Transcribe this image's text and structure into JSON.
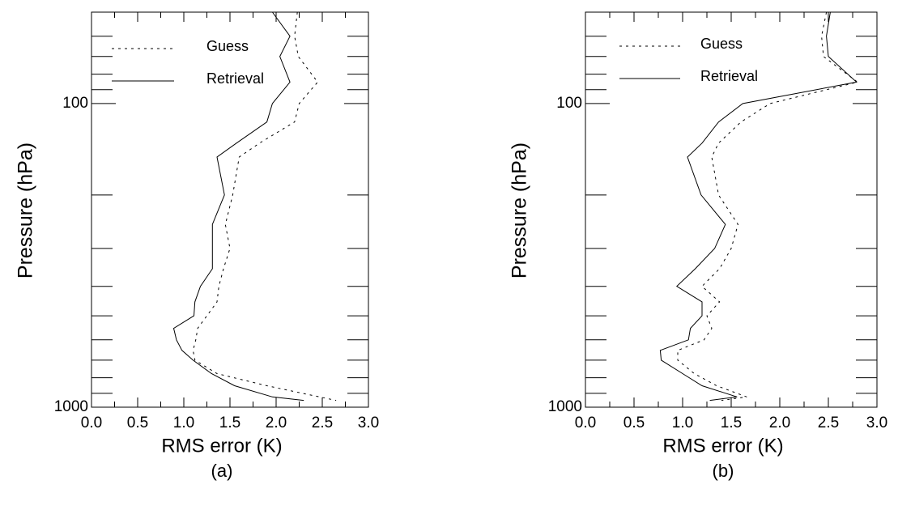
{
  "chart_data": [
    {
      "type": "line",
      "caption": "(a)",
      "xlabel": "RMS error (K)",
      "ylabel": "Pressure (hPa)",
      "pressure": [
        50,
        60,
        70,
        85,
        100,
        115,
        135,
        150,
        200,
        250,
        300,
        350,
        400,
        450,
        500,
        550,
        600,
        650,
        700,
        775,
        850,
        925,
        950
      ],
      "series": [
        {
          "name": "Guess",
          "color": "#000000",
          "dash": "dotted",
          "values": [
            2.23,
            2.2,
            2.24,
            2.45,
            2.25,
            2.2,
            1.82,
            1.6,
            1.53,
            1.45,
            1.5,
            1.43,
            1.38,
            1.36,
            1.25,
            1.15,
            1.13,
            1.1,
            1.12,
            1.36,
            1.9,
            2.47,
            2.65
          ]
        },
        {
          "name": "Retrieval",
          "color": "#000000",
          "dash": "solid",
          "values": [
            1.96,
            2.15,
            2.04,
            2.15,
            1.96,
            1.9,
            1.57,
            1.36,
            1.44,
            1.31,
            1.31,
            1.31,
            1.18,
            1.12,
            1.11,
            0.89,
            0.92,
            0.98,
            1.1,
            1.3,
            1.55,
            1.96,
            2.3
          ]
        }
      ],
      "xlim": [
        0,
        3
      ],
      "xticks": [
        {
          "value": 0,
          "label": "0.0"
        },
        0.5,
        {
          "value": 1,
          "label": "1.0"
        },
        1.5,
        {
          "value": 2,
          "label": "2.0"
        },
        2.5,
        {
          "value": 3,
          "label": "3.0"
        }
      ],
      "xminorticks": [
        0.25,
        0.75,
        1.25,
        1.75,
        2.25,
        2.75
      ],
      "ylim": [
        1000,
        50
      ],
      "ylog": true,
      "yticks": [
        100,
        1000
      ],
      "yminorticks": [
        60,
        70,
        80,
        90,
        200,
        300,
        400,
        500,
        600,
        700,
        800,
        900
      ]
    },
    {
      "type": "line",
      "caption": "(b)",
      "xlabel": "RMS error (K)",
      "ylabel": "Pressure (hPa)",
      "pressure": [
        50,
        60,
        70,
        85,
        100,
        115,
        135,
        150,
        200,
        250,
        300,
        350,
        400,
        450,
        500,
        550,
        600,
        650,
        700,
        775,
        850,
        925,
        950
      ],
      "series": [
        {
          "name": "Guess",
          "color": "#000000",
          "dash": "dotted",
          "values": [
            2.48,
            2.43,
            2.45,
            2.8,
            1.9,
            1.6,
            1.37,
            1.3,
            1.37,
            1.57,
            1.5,
            1.38,
            1.2,
            1.38,
            1.25,
            1.3,
            1.22,
            0.95,
            0.95,
            1.12,
            1.35,
            1.66,
            1.4
          ]
        },
        {
          "name": "Retrieval",
          "color": "#000000",
          "dash": "solid",
          "values": [
            2.52,
            2.48,
            2.5,
            2.79,
            1.62,
            1.37,
            1.2,
            1.05,
            1.19,
            1.44,
            1.33,
            1.13,
            0.94,
            1.2,
            1.2,
            1.08,
            1.06,
            0.77,
            0.78,
            1.0,
            1.2,
            1.56,
            1.28
          ]
        }
      ],
      "xlim": [
        0,
        3
      ],
      "xticks": [
        {
          "value": 0,
          "label": "0.0"
        },
        0.5,
        {
          "value": 1,
          "label": "1.0"
        },
        1.5,
        {
          "value": 2,
          "label": "2.0"
        },
        2.5,
        {
          "value": 3,
          "label": "3.0"
        }
      ],
      "xminorticks": [
        0.25,
        0.75,
        1.25,
        1.75,
        2.25,
        2.75
      ],
      "ylim": [
        1000,
        50
      ],
      "ylog": true,
      "yticks": [
        100,
        1000
      ],
      "yminorticks": [
        60,
        70,
        80,
        90,
        200,
        300,
        400,
        500,
        600,
        700,
        800,
        900
      ]
    }
  ]
}
